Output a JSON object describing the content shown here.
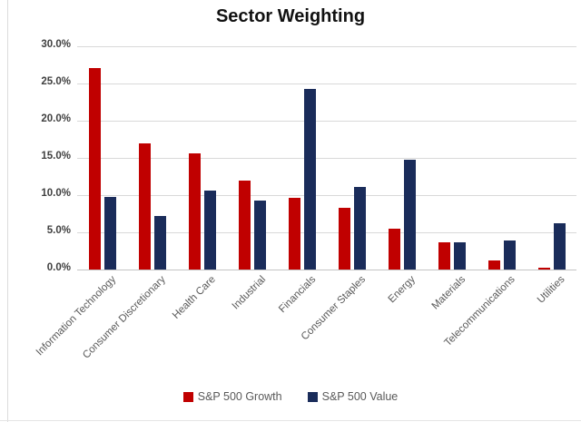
{
  "chart_data": {
    "type": "bar",
    "title": "Sector Weighting",
    "categories": [
      "Information Technology",
      "Consumer Discretionary",
      "Health Care",
      "Industrial",
      "Financials",
      "Consumer Staples",
      "Energy",
      "Materials",
      "Telecommunications",
      "Utilities"
    ],
    "series": [
      {
        "name": "S&P 500 Growth",
        "color": "#C00000",
        "values": [
          27.1,
          16.9,
          15.6,
          11.9,
          9.6,
          8.3,
          5.5,
          3.6,
          1.2,
          0.3
        ]
      },
      {
        "name": "S&P 500 Value",
        "color": "#1A2C5A",
        "values": [
          9.8,
          7.2,
          10.6,
          9.3,
          24.3,
          11.1,
          14.7,
          3.6,
          3.9,
          6.2
        ]
      }
    ],
    "ylim": [
      0,
      30
    ],
    "yticks": [
      {
        "value": 30,
        "label": "30.0%"
      },
      {
        "value": 25,
        "label": "25.0%"
      },
      {
        "value": 20,
        "label": "20.0%"
      },
      {
        "value": 15,
        "label": "15.0%"
      },
      {
        "value": 10,
        "label": "10.0%"
      },
      {
        "value": 5,
        "label": "5.0%"
      },
      {
        "value": 0,
        "label": "0.0%"
      }
    ],
    "grid": "horizontal",
    "legend_position": "bottom"
  }
}
